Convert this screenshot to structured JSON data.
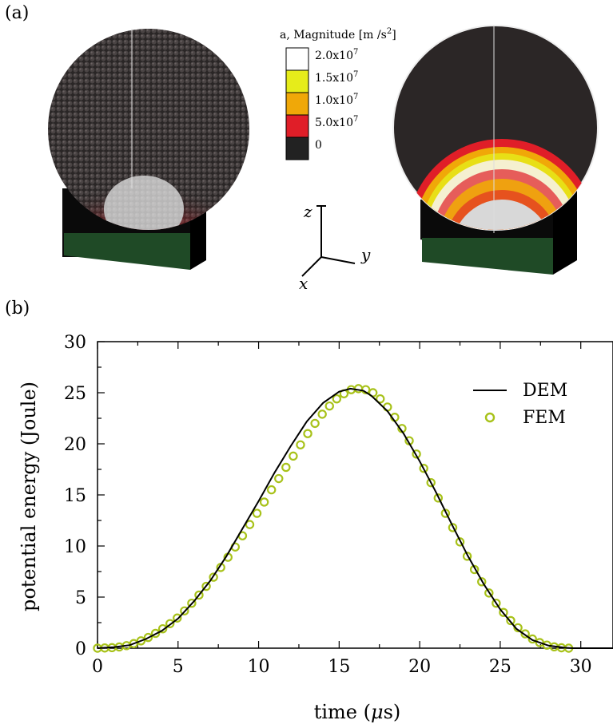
{
  "panel_a": {
    "label": "(a)",
    "colorbar": {
      "title": "a, Magnitude [m /s",
      "title_sup": "2",
      "title_end": "]",
      "levels": [
        {
          "mantissa": "2.0x10",
          "exp": "7",
          "color": "#ffffff"
        },
        {
          "mantissa": "1.5x10",
          "exp": "7",
          "color": "#e6ec1a"
        },
        {
          "mantissa": "1.0x10",
          "exp": "7",
          "color": "#f0a808"
        },
        {
          "mantissa": "5.0x10",
          "exp": "7",
          "color": "#e01e28"
        },
        {
          "mantissa": "0",
          "exp": "",
          "color": "#222222"
        }
      ]
    },
    "axes_triad": {
      "z": "z",
      "y": "y",
      "x": "x"
    },
    "left_model": "DEM particle sphere",
    "right_model": "FEM continuum sphere"
  },
  "panel_b": {
    "label": "(b)"
  },
  "chart_data": {
    "type": "line",
    "xlabel_prefix": "time (",
    "xlabel_unit": "μ",
    "xlabel_suffix": "s)",
    "ylabel": "potential energy (Joule)",
    "xlim": [
      0,
      32
    ],
    "ylim": [
      0,
      30
    ],
    "xticks": [
      0,
      5,
      10,
      15,
      20,
      25,
      30
    ],
    "yticks": [
      0,
      5,
      10,
      15,
      20,
      25,
      30
    ],
    "legend_position": "top-right",
    "series": [
      {
        "name": "DEM",
        "style": "line",
        "color": "#000000",
        "x": [
          0,
          1,
          2,
          3,
          4,
          5,
          6,
          7,
          8,
          9,
          10,
          11,
          12,
          13,
          14,
          15,
          15.7,
          16.5,
          17,
          18,
          19,
          20,
          21,
          22,
          23,
          24,
          25,
          26,
          27,
          28,
          29,
          29.5,
          30,
          32
        ],
        "y": [
          0,
          0.1,
          0.3,
          0.9,
          1.7,
          2.9,
          4.6,
          6.6,
          9.0,
          11.7,
          14.4,
          17.2,
          19.8,
          22.2,
          24.0,
          25.1,
          25.4,
          25.2,
          24.7,
          23.2,
          21.0,
          18.3,
          15.3,
          12.1,
          9.0,
          6.2,
          3.8,
          1.9,
          0.8,
          0.25,
          0.05,
          0,
          0,
          0
        ]
      },
      {
        "name": "FEM",
        "style": "markers",
        "color": "#a8c21a",
        "x": [
          0,
          0.45,
          0.9,
          1.35,
          1.8,
          2.25,
          2.7,
          3.15,
          3.6,
          4.05,
          4.5,
          4.95,
          5.4,
          5.85,
          6.3,
          6.75,
          7.2,
          7.65,
          8.1,
          8.55,
          9.0,
          9.45,
          9.9,
          10.35,
          10.8,
          11.25,
          11.7,
          12.15,
          12.6,
          13.05,
          13.5,
          13.95,
          14.4,
          14.85,
          15.3,
          15.75,
          16.2,
          16.65,
          17.1,
          17.55,
          18.0,
          18.45,
          18.9,
          19.35,
          19.8,
          20.25,
          20.7,
          21.15,
          21.6,
          22.05,
          22.5,
          22.95,
          23.4,
          23.85,
          24.3,
          24.75,
          25.2,
          25.65,
          26.1,
          26.55,
          27.0,
          27.45,
          27.9,
          28.35,
          28.8,
          29.25
        ],
        "y": [
          0,
          0.02,
          0.05,
          0.12,
          0.25,
          0.45,
          0.72,
          1.05,
          1.45,
          1.9,
          2.4,
          2.95,
          3.65,
          4.4,
          5.2,
          6.05,
          6.95,
          7.9,
          8.9,
          9.9,
          11.0,
          12.1,
          13.2,
          14.3,
          15.5,
          16.6,
          17.7,
          18.8,
          19.9,
          21.0,
          22.0,
          22.9,
          23.7,
          24.4,
          24.9,
          25.3,
          25.4,
          25.3,
          25.0,
          24.4,
          23.6,
          22.6,
          21.5,
          20.3,
          19.0,
          17.6,
          16.2,
          14.7,
          13.2,
          11.8,
          10.4,
          9.0,
          7.7,
          6.5,
          5.4,
          4.4,
          3.5,
          2.7,
          2.0,
          1.4,
          0.9,
          0.55,
          0.3,
          0.13,
          0.04,
          0
        ]
      }
    ]
  }
}
